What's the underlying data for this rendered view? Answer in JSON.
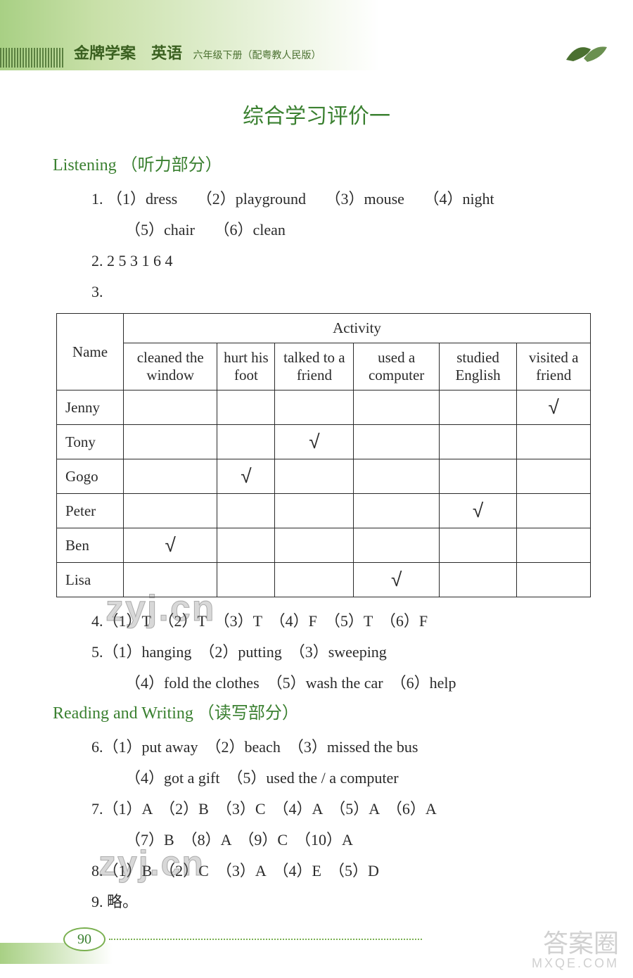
{
  "header": {
    "book_title": "金牌学案　英语",
    "book_subtitle": "六年级下册（配粤教人民版）"
  },
  "main_title": "综合学习评价一",
  "listening": {
    "heading_en": "Listening",
    "heading_cn": "（听力部分）",
    "q1": {
      "prefix": "1.",
      "a1": "（1）dress",
      "a2": "（2）playground",
      "a3": "（3）mouse",
      "a4": "（4）night",
      "a5": "（5）chair",
      "a6": "（6）clean"
    },
    "q2": "2.  2   5   3   1   6   4",
    "q3_prefix": "3.",
    "table": {
      "header_activity": "Activity",
      "header_name": "Name",
      "cols": [
        "cleaned the window",
        "hurt his foot",
        "talked to a friend",
        "used a computer",
        "studied English",
        "visited a friend"
      ],
      "rows": [
        {
          "name": "Jenny",
          "marks": [
            "",
            "",
            "",
            "",
            "",
            "✓"
          ]
        },
        {
          "name": "Tony",
          "marks": [
            "",
            "",
            "✓",
            "",
            "",
            ""
          ]
        },
        {
          "name": "Gogo",
          "marks": [
            "",
            "✓",
            "",
            "",
            "",
            ""
          ]
        },
        {
          "name": "Peter",
          "marks": [
            "",
            "",
            "",
            "",
            "✓",
            ""
          ]
        },
        {
          "name": "Ben",
          "marks": [
            "✓",
            "",
            "",
            "",
            "",
            ""
          ]
        },
        {
          "name": "Lisa",
          "marks": [
            "",
            "",
            "",
            "✓",
            "",
            ""
          ]
        }
      ]
    },
    "q4": "4.（1）T　（2）T　（3）T　（4）F　（5）T　（6）F",
    "q5_line1": "5.（1）hanging　（2）putting　（3）sweeping",
    "q5_line2": "（4）fold the clothes　（5）wash the car　（6）help"
  },
  "reading": {
    "heading_en": "Reading and Writing",
    "heading_cn": "（读写部分）",
    "q6_line1": "6.（1）put away　（2）beach　（3）missed the bus",
    "q6_line2": "（4）got a gift　（5）used the / a computer",
    "q7_line1": "7.（1）A　（2）B　（3）C　（4）A　（5）A　（6）A",
    "q7_line2": "（7）B　（8）A　（9）C　（10）A",
    "q8": "8.（1）B　（2）C　（3）A　（4）E　（5）D",
    "q9": "9. 略。"
  },
  "page_number": "90",
  "watermark_text": "zyj.cn",
  "corner_watermark": "答案圈",
  "corner_watermark_url": "MXQE.COM"
}
